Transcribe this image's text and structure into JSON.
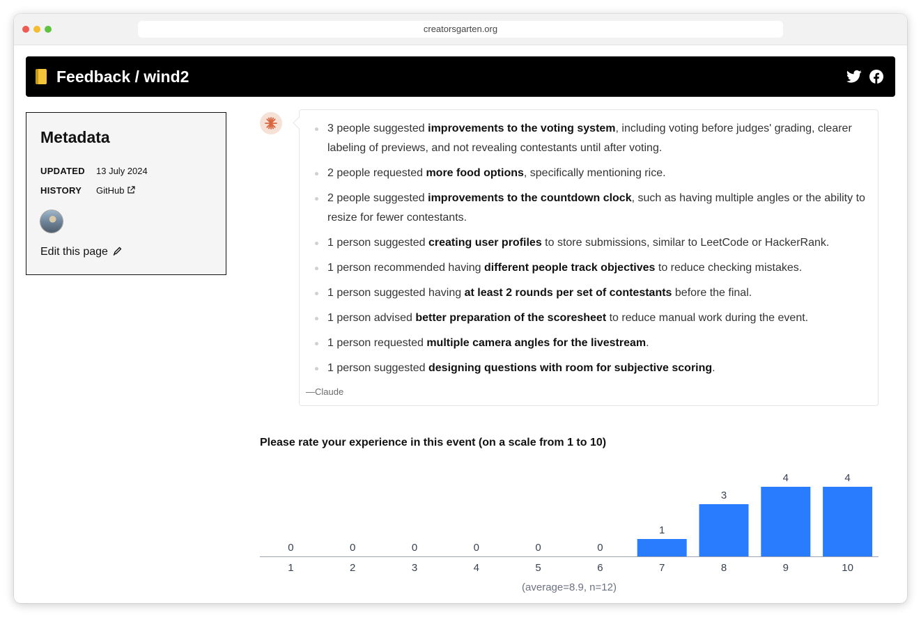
{
  "browser": {
    "url": "creatorsgarten.org"
  },
  "header": {
    "title": "Feedback / wind2",
    "icons": [
      "notebook-icon",
      "twitter-icon",
      "facebook-icon"
    ]
  },
  "metadata": {
    "heading": "Metadata",
    "updated_label": "UPDATED",
    "updated_value": "13 July 2024",
    "history_label": "HISTORY",
    "history_link": "GitHub",
    "edit_label": "Edit this page"
  },
  "summary": {
    "items": [
      {
        "pre": "3 people suggested ",
        "bold": "improvements to the voting system",
        "post": ", including voting before judges' grading, clearer labeling of previews, and not revealing contestants until after voting."
      },
      {
        "pre": "2 people requested ",
        "bold": "more food options",
        "post": ", specifically mentioning rice."
      },
      {
        "pre": "2 people suggested ",
        "bold": "improvements to the countdown clock",
        "post": ", such as having multiple angles or the ability to resize for fewer contestants."
      },
      {
        "pre": "1 person suggested ",
        "bold": "creating user profiles",
        "post": " to store submissions, similar to LeetCode or HackerRank."
      },
      {
        "pre": "1 person recommended having ",
        "bold": "different people track objectives",
        "post": " to reduce checking mistakes."
      },
      {
        "pre": "1 person suggested having ",
        "bold": "at least 2 rounds per set of contestants",
        "post": " before the final."
      },
      {
        "pre": "1 person advised ",
        "bold": "better preparation of the scoresheet",
        "post": " to reduce manual work during the event."
      },
      {
        "pre": "1 person requested ",
        "bold": "multiple camera angles for the livestream",
        "post": "."
      },
      {
        "pre": "1 person suggested ",
        "bold": "designing questions with room for subjective scoring",
        "post": "."
      }
    ],
    "attribution": "—Claude"
  },
  "rating": {
    "question": "Please rate your experience in this event (on a scale from 1 to 10)"
  },
  "chart_data": {
    "type": "bar",
    "categories": [
      "1",
      "2",
      "3",
      "4",
      "5",
      "6",
      "7",
      "8",
      "9",
      "10"
    ],
    "values": [
      0,
      0,
      0,
      0,
      0,
      0,
      1,
      3,
      4,
      4
    ],
    "title": "",
    "xlabel": "(average=8.9, n=12)",
    "ylabel": "",
    "bar_color": "#2a7cff",
    "ylim": [
      0,
      4
    ]
  },
  "colors": {
    "accent": "#2a7cff",
    "header_bg": "#000000"
  }
}
